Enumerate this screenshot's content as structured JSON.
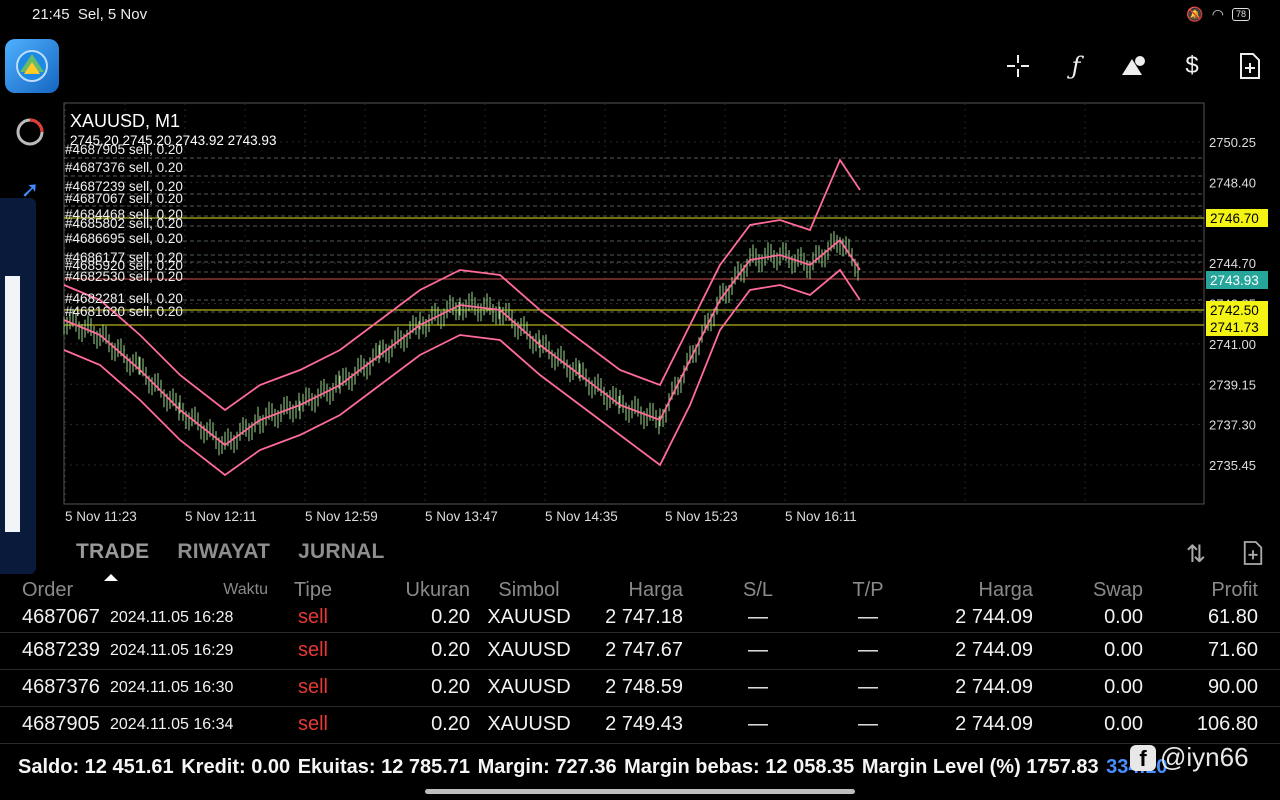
{
  "status_bar": {
    "time": "21:45",
    "date": "Sel, 5 Nov",
    "battery": "78"
  },
  "toolbar": {
    "icons": [
      "crosshair-icon",
      "function-icon",
      "objects-icon",
      "trade-icon",
      "new-order-icon"
    ]
  },
  "chart": {
    "symbol_label": "XAUUSD, M1",
    "ohlc_label": "2745.20 2745.20 2743.92 2743.93",
    "order_lines": [
      "#4687905 sell, 0.20",
      "#4687376 sell, 0.20",
      "#4687239 sell, 0.20",
      "#4687067 sell, 0.20",
      "#4684468 sell, 0.20",
      "#4685802 sell, 0.20",
      "#4686695 sell, 0.20",
      "#4686177 sell, 0.20",
      "#4685920 sell, 0.20",
      "#4682530 sell, 0.20",
      "#4682281 sell, 0.20",
      "#4681620 sell, 0.20"
    ],
    "y_ticks": [
      "2750.25",
      "2748.40",
      "2744.70",
      "2742.85",
      "2741.00",
      "2739.15",
      "2737.30",
      "2735.45"
    ],
    "x_ticks": [
      "5 Nov 11:23",
      "5 Nov 12:11",
      "5 Nov 12:59",
      "5 Nov 13:47",
      "5 Nov 14:35",
      "5 Nov 15:23",
      "5 Nov 16:11"
    ],
    "price_tags": [
      {
        "text": "2746.70",
        "bg": "#f3f314",
        "fg": "#000"
      },
      {
        "text": "2743.93",
        "bg": "#26a69a",
        "fg": "#fff"
      },
      {
        "text": "2742.50",
        "bg": "#f3f314",
        "fg": "#000"
      },
      {
        "text": "2741.73",
        "bg": "#f3f314",
        "fg": "#000"
      }
    ]
  },
  "tabs": [
    "TRADE",
    "RIWAYAT",
    "JURNAL"
  ],
  "table": {
    "headers": [
      "Order",
      "Waktu",
      "Tipe",
      "Ukuran",
      "Simbol",
      "Harga",
      "S/L",
      "T/P",
      "Harga",
      "Swap",
      "Profit"
    ],
    "rows": [
      [
        "4687067",
        "2024.11.05 16:28",
        "sell",
        "0.20",
        "XAUUSD",
        "2 747.18",
        "—",
        "—",
        "2 744.09",
        "0.00",
        "61.80"
      ],
      [
        "4687239",
        "2024.11.05 16:29",
        "sell",
        "0.20",
        "XAUUSD",
        "2 747.67",
        "—",
        "—",
        "2 744.09",
        "0.00",
        "71.60"
      ],
      [
        "4687376",
        "2024.11.05 16:30",
        "sell",
        "0.20",
        "XAUUSD",
        "2 748.59",
        "—",
        "—",
        "2 744.09",
        "0.00",
        "90.00"
      ],
      [
        "4687905",
        "2024.11.05 16:34",
        "sell",
        "0.20",
        "XAUUSD",
        "2 749.43",
        "—",
        "—",
        "2 744.09",
        "0.00",
        "106.80"
      ]
    ]
  },
  "footer": {
    "saldo": "Saldo: 12 451.61",
    "kredit": "Kredit: 0.00",
    "ekuitas": "Ekuitas: 12 785.71",
    "margin": "Margin: 727.36",
    "margin_bebas": "Margin bebas: 12 058.35",
    "margin_level": "Margin Level (%) 1757.83",
    "profit_total": "334.10"
  },
  "watermark": {
    "handle": "@iyn66"
  },
  "colors": {
    "bollinger": "#ff6b9a",
    "sell": "#e53935",
    "candle": "#9bd88a",
    "grid": "#333333"
  }
}
